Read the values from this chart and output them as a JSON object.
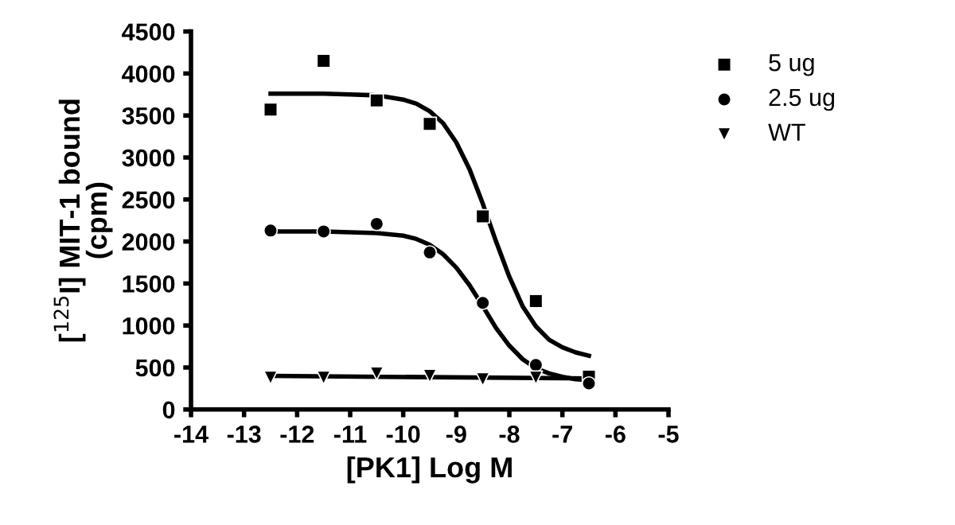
{
  "chart_data": {
    "type": "scatter",
    "xlabel": "[PK1] Log M",
    "ylabel": "[$^{125}$I] MIT-1 bound\n(cpm)",
    "xlim": [
      -14,
      -5
    ],
    "xticks": [
      -14,
      -13,
      -12,
      -11,
      -10,
      -9,
      -8,
      -7,
      -6,
      -5
    ],
    "ylim": [
      0,
      4500
    ],
    "yticks": [
      0,
      500,
      1000,
      1500,
      2000,
      2500,
      3000,
      3500,
      4000,
      4500
    ],
    "grid": false,
    "legend": "top right",
    "series": [
      {
        "name": "5 ug",
        "marker": "square",
        "color": "#000000",
        "x": [
          -12.5,
          -11.5,
          -10.5,
          -9.5,
          -8.5,
          -7.5,
          -6.5
        ],
        "values": [
          3570,
          4150,
          3680,
          3400,
          2300,
          1290,
          390
        ]
      },
      {
        "name": "2.5 ug",
        "marker": "circle",
        "color": "#000000",
        "x": [
          -12.5,
          -11.5,
          -10.5,
          -9.5,
          -8.5,
          -7.5,
          -6.5
        ],
        "values": [
          2130,
          2120,
          2210,
          1870,
          1270,
          530,
          310
        ]
      },
      {
        "name": "WT",
        "marker": "triangle",
        "color": "#000000",
        "x": [
          -12.5,
          -11.5,
          -10.5,
          -9.5,
          -8.5,
          -7.5
        ],
        "values": [
          380,
          380,
          430,
          400,
          360,
          380
        ]
      },
      {
        "type": "line",
        "marker": "none",
        "color": "#000000",
        "x": [
          -12.5,
          -12,
          -11.5,
          -11,
          -10.5,
          -10,
          -9.75,
          -9.5,
          -9.25,
          -9,
          -8.75,
          -8.5,
          -8.25,
          -8,
          -7.75,
          -7.5,
          -7.25,
          -7,
          -6.75,
          -6.5
        ],
        "values": [
          3760,
          3760,
          3760,
          3750,
          3740,
          3690,
          3640,
          3550,
          3410,
          3180,
          2860,
          2450,
          2000,
          1580,
          1230,
          990,
          830,
          740,
          680,
          640
        ]
      },
      {
        "type": "line",
        "marker": "none",
        "color": "#000000",
        "x": [
          -12.5,
          -12,
          -11.5,
          -11,
          -10.5,
          -10,
          -9.75,
          -9.5,
          -9.25,
          -9,
          -8.75,
          -8.5,
          -8.25,
          -8,
          -7.75,
          -7.5,
          -7.25,
          -7,
          -6.75,
          -6.5
        ],
        "values": [
          2120,
          2120,
          2120,
          2110,
          2100,
          2070,
          2030,
          1960,
          1850,
          1690,
          1480,
          1230,
          970,
          760,
          600,
          490,
          430,
          390,
          360,
          350
        ]
      },
      {
        "type": "line",
        "marker": "none",
        "color": "#000000",
        "x": [
          -12.5,
          -6.5
        ],
        "values": [
          400,
          370
        ]
      }
    ]
  }
}
